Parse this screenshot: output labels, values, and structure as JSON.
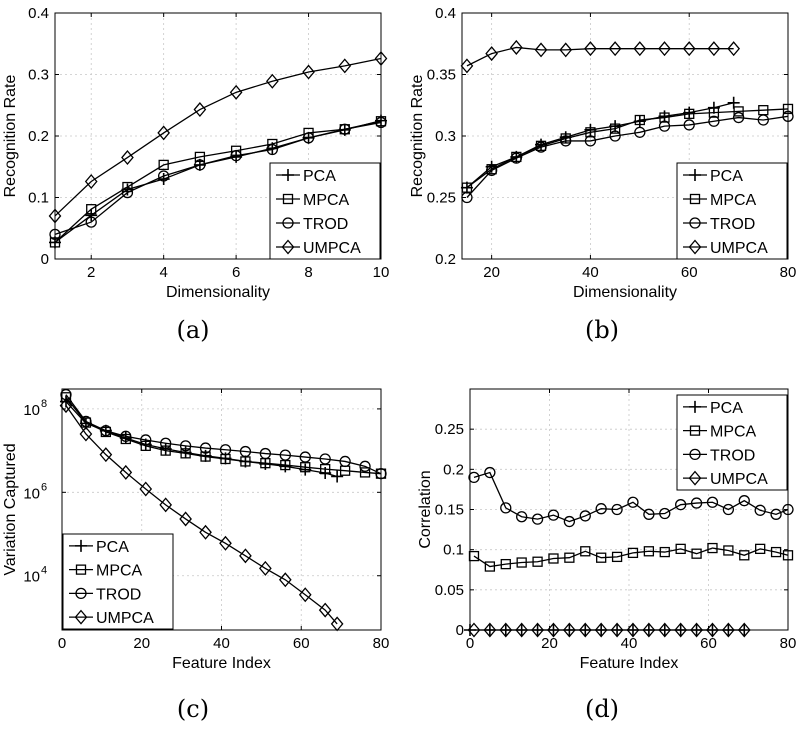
{
  "series_names": [
    "PCA",
    "MPCA",
    "TROD",
    "UMPCA"
  ],
  "markers": [
    "plus",
    "square",
    "circle",
    "diamond"
  ],
  "chart_data": [
    {
      "type": "line",
      "caption": "(a)",
      "xlabel": "Dimensionality",
      "ylabel": "Recognition Rate",
      "xlim": [
        1,
        10
      ],
      "ylim": [
        0,
        0.4
      ],
      "xticks": [
        2,
        4,
        6,
        8,
        10
      ],
      "xtick_labels": [
        "2",
        "4",
        "6",
        "8",
        "10"
      ],
      "yticks": [
        0,
        0.1,
        0.2,
        0.3,
        0.4
      ],
      "ytick_labels": [
        "0",
        "0.1",
        "0.2",
        "0.3",
        "0.4"
      ],
      "yscale": "linear",
      "legend": "bottom-right",
      "series": [
        {
          "name": "PCA",
          "marker": "plus",
          "x": [
            1,
            2,
            3,
            4,
            5,
            6,
            7,
            8,
            9,
            10
          ],
          "values": [
            0.027,
            0.071,
            0.113,
            0.13,
            0.153,
            0.166,
            0.18,
            0.197,
            0.21,
            0.225
          ]
        },
        {
          "name": "MPCA",
          "marker": "square",
          "x": [
            1,
            2,
            3,
            4,
            5,
            6,
            7,
            8,
            9,
            10
          ],
          "values": [
            0.027,
            0.081,
            0.117,
            0.153,
            0.166,
            0.176,
            0.187,
            0.205,
            0.211,
            0.224
          ]
        },
        {
          "name": "TROD",
          "marker": "circle",
          "x": [
            1,
            2,
            3,
            4,
            5,
            6,
            7,
            8,
            9,
            10
          ],
          "values": [
            0.04,
            0.06,
            0.108,
            0.135,
            0.153,
            0.168,
            0.178,
            0.197,
            0.211,
            0.222
          ]
        },
        {
          "name": "UMPCA",
          "marker": "diamond",
          "x": [
            1,
            2,
            3,
            4,
            5,
            6,
            7,
            8,
            9,
            10
          ],
          "values": [
            0.07,
            0.126,
            0.165,
            0.205,
            0.243,
            0.271,
            0.289,
            0.304,
            0.314,
            0.326
          ]
        }
      ]
    },
    {
      "type": "line",
      "caption": "(b)",
      "xlabel": "Dimensionality",
      "ylabel": "Recognition Rate",
      "xlim": [
        14,
        80
      ],
      "ylim": [
        0.2,
        0.4
      ],
      "xticks": [
        20,
        40,
        60,
        80
      ],
      "xtick_labels": [
        "20",
        "40",
        "60",
        "80"
      ],
      "yticks": [
        0.2,
        0.25,
        0.3,
        0.35,
        0.4
      ],
      "ytick_labels": [
        "0.2",
        "0.25",
        "0.3",
        "0.35",
        "0.4"
      ],
      "yscale": "linear",
      "legend": "bottom-right",
      "series": [
        {
          "name": "PCA",
          "marker": "plus",
          "x": [
            15,
            20,
            25,
            30,
            35,
            40,
            45,
            50,
            55,
            60,
            65,
            69
          ],
          "values": [
            0.258,
            0.275,
            0.283,
            0.293,
            0.299,
            0.305,
            0.308,
            0.312,
            0.316,
            0.319,
            0.323,
            0.327
          ]
        },
        {
          "name": "MPCA",
          "marker": "square",
          "x": [
            15,
            20,
            25,
            30,
            35,
            40,
            45,
            50,
            55,
            60,
            65,
            70,
            75,
            80
          ],
          "values": [
            0.258,
            0.273,
            0.283,
            0.292,
            0.298,
            0.303,
            0.306,
            0.313,
            0.315,
            0.318,
            0.319,
            0.32,
            0.321,
            0.322
          ]
        },
        {
          "name": "TROD",
          "marker": "circle",
          "x": [
            15,
            20,
            25,
            30,
            35,
            40,
            45,
            50,
            55,
            60,
            65,
            70,
            75,
            80
          ],
          "values": [
            0.25,
            0.272,
            0.282,
            0.291,
            0.296,
            0.296,
            0.3,
            0.303,
            0.308,
            0.309,
            0.312,
            0.315,
            0.313,
            0.316
          ]
        },
        {
          "name": "UMPCA",
          "marker": "diamond",
          "x": [
            15,
            20,
            25,
            30,
            35,
            40,
            45,
            50,
            55,
            60,
            65,
            69
          ],
          "values": [
            0.357,
            0.367,
            0.372,
            0.37,
            0.37,
            0.371,
            0.371,
            0.371,
            0.371,
            0.371,
            0.371,
            0.371
          ]
        }
      ]
    },
    {
      "type": "line",
      "caption": "(c)",
      "xlabel": "Feature Index",
      "ylabel": "Variation Captured",
      "xlim": [
        0,
        80
      ],
      "ylim": [
        500,
        300000000
      ],
      "xticks": [
        0,
        20,
        40,
        60,
        80
      ],
      "xtick_labels": [
        "0",
        "20",
        "40",
        "60",
        "80"
      ],
      "yticks": [
        10000,
        1000000,
        100000000
      ],
      "ytick_labels": [
        [
          "10",
          "4"
        ],
        [
          "10",
          "6"
        ],
        [
          "10",
          "8"
        ]
      ],
      "yscale": "log",
      "legend": "bottom-left",
      "series": [
        {
          "name": "PCA",
          "marker": "plus",
          "x": [
            1,
            6,
            11,
            16,
            21,
            26,
            31,
            36,
            41,
            46,
            51,
            56,
            61,
            66,
            69
          ],
          "values": [
            150000000,
            45000000,
            30000000,
            20000000,
            14000000,
            11000000,
            9000000,
            7500000,
            6500000,
            5500000,
            4800000,
            4200000,
            3500000,
            2900000,
            2400000
          ]
        },
        {
          "name": "MPCA",
          "marker": "square",
          "x": [
            1,
            6,
            11,
            16,
            21,
            26,
            31,
            36,
            41,
            46,
            51,
            56,
            61,
            66,
            71,
            76,
            80
          ],
          "values": [
            190000000,
            47000000,
            28000000,
            19000000,
            13000000,
            10000000,
            8600000,
            7200000,
            6300000,
            5500000,
            5000000,
            4500000,
            4000000,
            3600000,
            3300000,
            3000000,
            2800000
          ]
        },
        {
          "name": "TROD",
          "marker": "circle",
          "x": [
            1,
            6,
            11,
            16,
            21,
            26,
            31,
            36,
            41,
            46,
            51,
            56,
            61,
            66,
            71,
            76,
            80
          ],
          "values": [
            220000000,
            50000000,
            30000000,
            22000000,
            18000000,
            15000000,
            13000000,
            11500000,
            10500000,
            9500000,
            8500000,
            7800000,
            7000000,
            6300000,
            5500000,
            4200000,
            2800000
          ]
        },
        {
          "name": "UMPCA",
          "marker": "diamond",
          "x": [
            1,
            6,
            11,
            16,
            21,
            26,
            31,
            36,
            41,
            46,
            51,
            56,
            61,
            66,
            69
          ],
          "values": [
            120000000,
            25000000,
            8000000,
            3000000,
            1200000,
            500000,
            230000,
            110000,
            60000,
            30000,
            15000,
            8000,
            3500,
            1500,
            700
          ]
        }
      ]
    },
    {
      "type": "line",
      "caption": "(d)",
      "xlabel": "Feature Index",
      "ylabel": "Correlation",
      "xlim": [
        0,
        80
      ],
      "ylim": [
        0,
        0.3
      ],
      "xticks": [
        0,
        20,
        40,
        60,
        80
      ],
      "xtick_labels": [
        "0",
        "20",
        "40",
        "60",
        "80"
      ],
      "yticks": [
        0,
        0.05,
        0.1,
        0.15,
        0.2,
        0.25
      ],
      "ytick_labels": [
        "0",
        "0.05",
        "0.1",
        "0.15",
        "0.2",
        "0.25"
      ],
      "yscale": "linear",
      "legend": "top-right",
      "series": [
        {
          "name": "PCA",
          "marker": "plus",
          "x": [
            0,
            5,
            9,
            13,
            17,
            21,
            25,
            29,
            33,
            37,
            41,
            45,
            49,
            53,
            57,
            61,
            65,
            69
          ],
          "values": [
            0,
            0,
            0,
            0,
            0,
            0,
            0,
            0,
            0,
            0,
            0,
            0,
            0,
            0,
            0,
            0,
            0,
            0
          ]
        },
        {
          "name": "MPCA",
          "marker": "square",
          "x": [
            1,
            5,
            9,
            13,
            17,
            21,
            25,
            29,
            33,
            37,
            41,
            45,
            49,
            53,
            57,
            61,
            65,
            69,
            73,
            77,
            80
          ],
          "values": [
            0.092,
            0.079,
            0.082,
            0.084,
            0.085,
            0.089,
            0.09,
            0.098,
            0.09,
            0.091,
            0.096,
            0.098,
            0.097,
            0.101,
            0.095,
            0.102,
            0.099,
            0.093,
            0.101,
            0.097,
            0.093
          ]
        },
        {
          "name": "TROD",
          "marker": "circle",
          "x": [
            1,
            5,
            9,
            13,
            17,
            21,
            25,
            29,
            33,
            37,
            41,
            45,
            49,
            53,
            57,
            61,
            65,
            69,
            73,
            77,
            80
          ],
          "values": [
            0.19,
            0.196,
            0.152,
            0.141,
            0.138,
            0.143,
            0.135,
            0.142,
            0.151,
            0.15,
            0.159,
            0.144,
            0.145,
            0.156,
            0.158,
            0.159,
            0.15,
            0.161,
            0.149,
            0.144,
            0.15
          ]
        },
        {
          "name": "UMPCA",
          "marker": "diamond",
          "x": [
            1,
            5,
            9,
            13,
            17,
            21,
            25,
            29,
            33,
            37,
            41,
            45,
            49,
            53,
            57,
            61,
            65,
            69
          ],
          "values": [
            0,
            0,
            0,
            0,
            0,
            0,
            0,
            0,
            0,
            0,
            0,
            0,
            0,
            0,
            0,
            0,
            0,
            0
          ]
        }
      ]
    }
  ]
}
